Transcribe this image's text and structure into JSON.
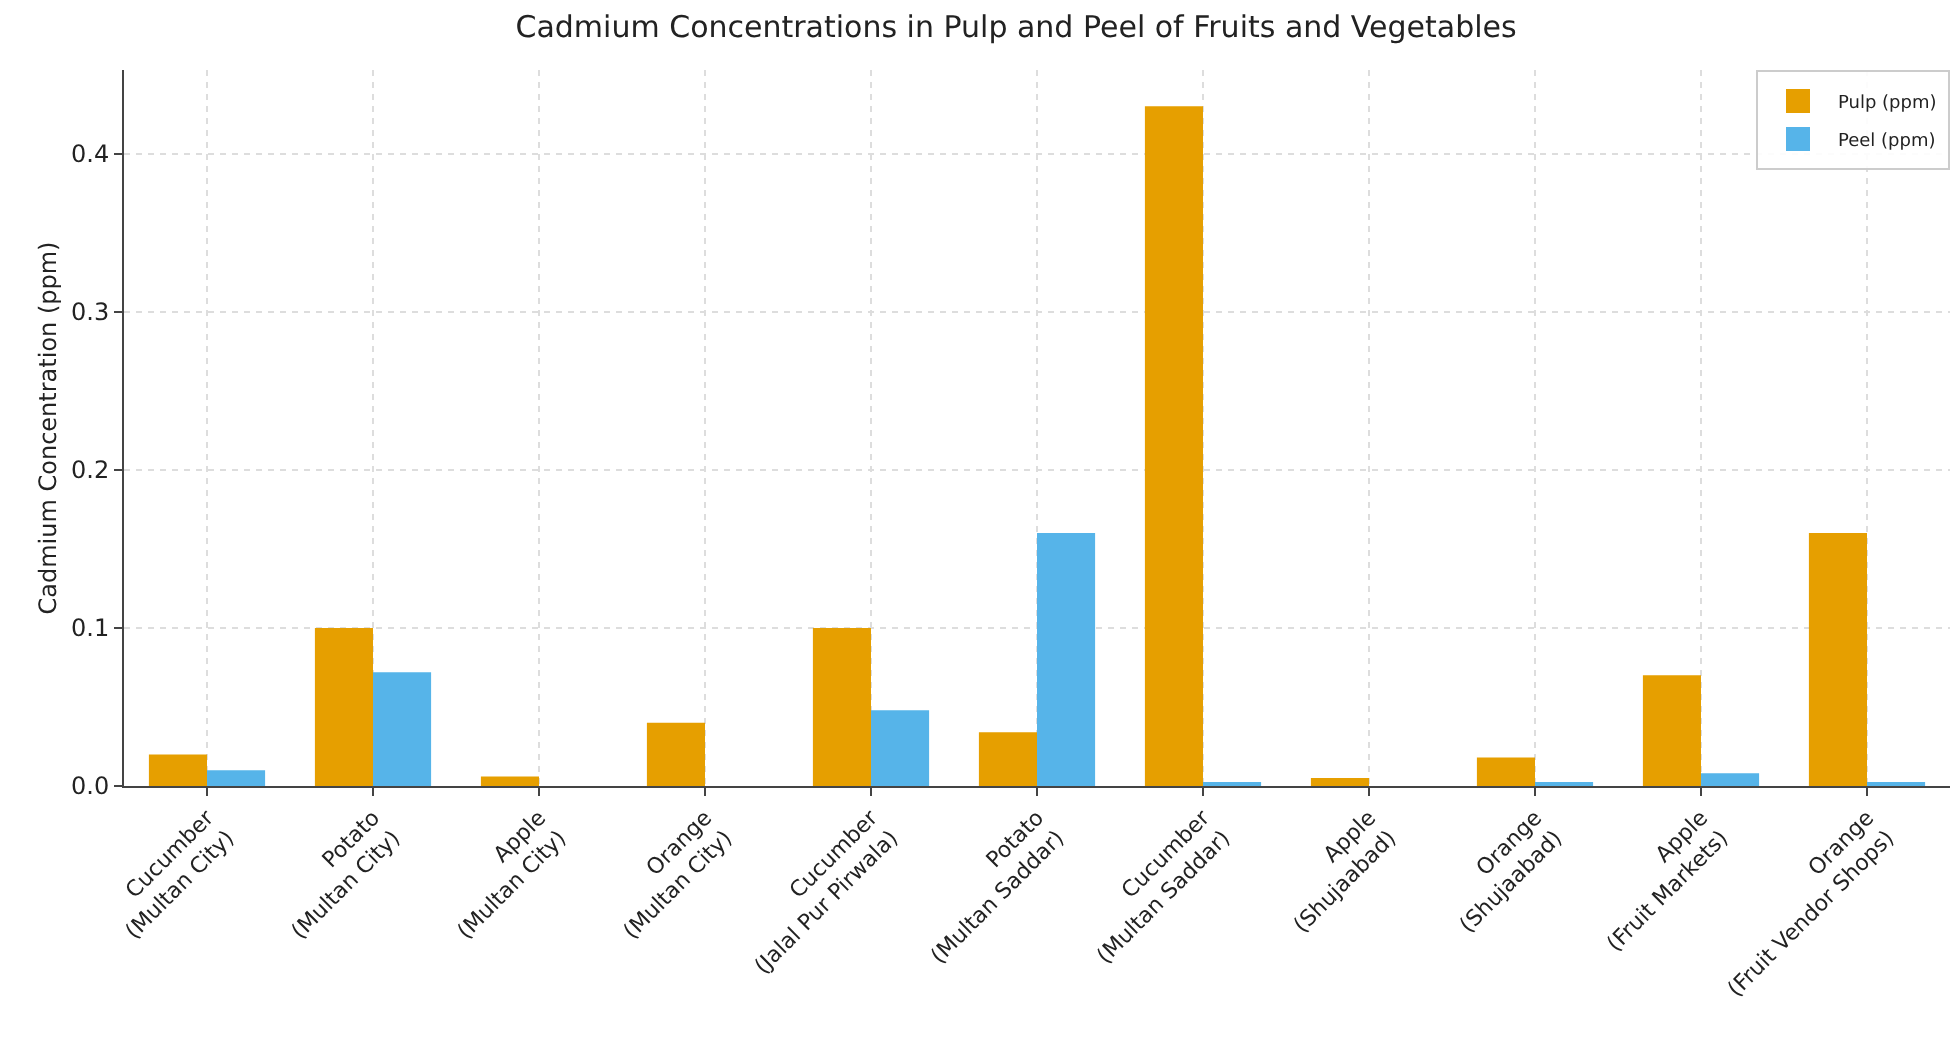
{
  "chart_data": {
    "type": "bar",
    "title": "Cadmium Concentrations in Pulp and Peel of Fruits and Vegetables",
    "ylabel": "Cadmium Concentration (ppm)",
    "categories": [
      "Cucumber\n(Multan City)",
      "Potato\n(Multan City)",
      "Apple\n(Multan City)",
      "Orange\n(Multan City)",
      "Cucumber\n(Jalal Pur Pirwala)",
      "Potato\n(Multan Saddar)",
      "Cucumber\n(Multan Saddar)",
      "Apple\n(Shujaabad)",
      "Orange\n(Shujaabad)",
      "Apple\n(Fruit Markets)",
      "Orange\n(Fruit Vendor Shops)"
    ],
    "series": [
      {
        "name": "Pulp (ppm)",
        "color": "#e69f00",
        "values": [
          0.02,
          0.1,
          0.006,
          0.04,
          0.1,
          0.034,
          0.43,
          0.005,
          0.018,
          0.07,
          0.16
        ]
      },
      {
        "name": "Peel (ppm)",
        "color": "#56b4e9",
        "values": [
          0.01,
          0.072,
          0,
          0,
          0.048,
          0.16,
          0.002,
          0,
          0.002,
          0.008,
          0.002
        ]
      }
    ],
    "ylim": [
      0,
      0.453
    ],
    "yticks": [
      {
        "value": 0,
        "label": "0.0"
      },
      0.1,
      0.2,
      0.3,
      0.4
    ],
    "grid": true,
    "legend": "top right"
  }
}
